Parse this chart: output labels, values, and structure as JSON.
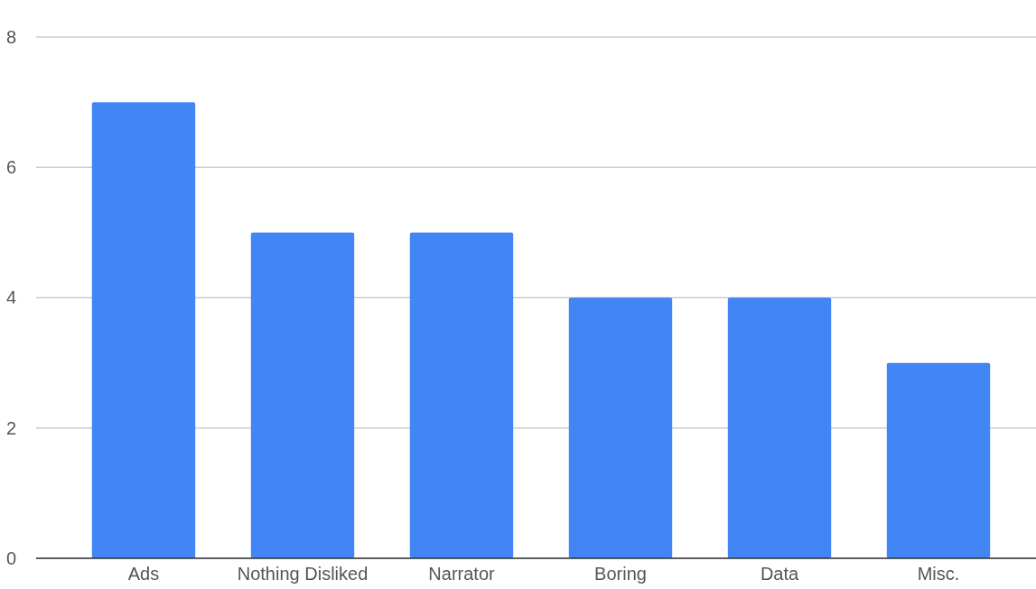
{
  "chart_data": {
    "type": "bar",
    "categories": [
      "Ads",
      "Nothing Disliked",
      "Narrator",
      "Boring",
      "Data",
      "Misc."
    ],
    "values": [
      7,
      5,
      5,
      4,
      4,
      3
    ],
    "color": "#4285f4",
    "ylim": [
      0,
      8
    ],
    "yticks": [
      0,
      2,
      4,
      6,
      8
    ],
    "grid": "y"
  }
}
